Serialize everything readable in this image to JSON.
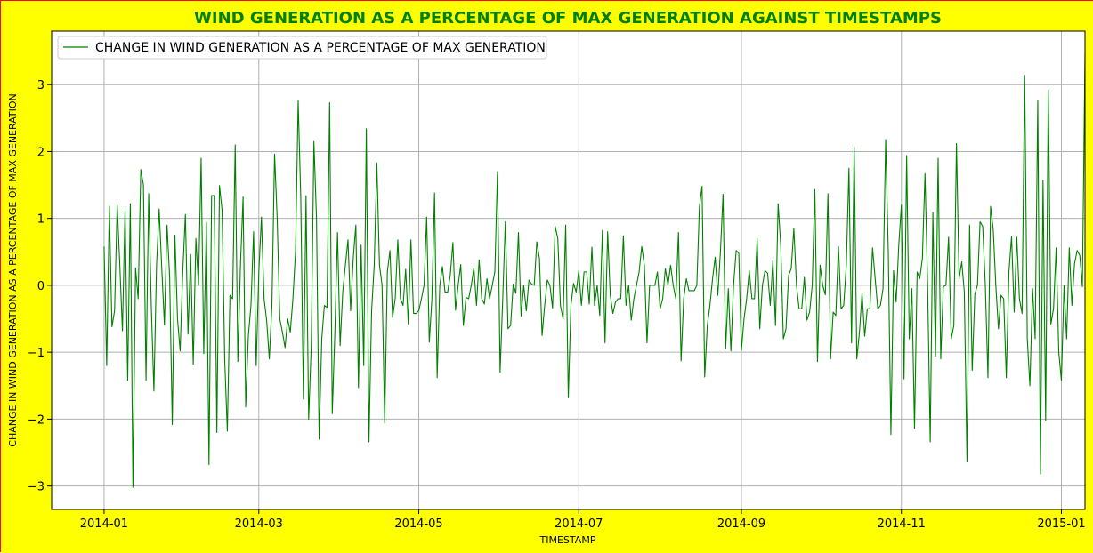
{
  "colors": {
    "background": "#ffff00",
    "border": "#ff0000",
    "title": "#008000",
    "line": "#008000",
    "grid": "#b0b0b0"
  },
  "chart_data": {
    "type": "line",
    "title": "WIND GENERATION AS A PERCENTAGE OF MAX GENERATION AGAINST TIMESTAMPS",
    "xlabel": "TIMESTAMP",
    "ylabel": "CHANGE IN WIND GENERATION AS A PERCENTAGE OF MAX GENERATION",
    "x_type": "date",
    "xlim": [
      "2013-12-12",
      "2015-01-10"
    ],
    "ylim": [
      -3.35,
      3.8
    ],
    "x_ticks": [
      "2014-01-01",
      "2014-03-01",
      "2014-05-01",
      "2014-07-01",
      "2014-09-01",
      "2014-11-01",
      "2015-01-01"
    ],
    "x_tick_labels": [
      "2014-01",
      "2014-03",
      "2014-05",
      "2014-07",
      "2014-09",
      "2014-11",
      "2015-01"
    ],
    "y_ticks": [
      -3,
      -2,
      -1,
      0,
      1,
      2,
      3
    ],
    "y_tick_labels": [
      "−3",
      "−2",
      "−1",
      "0",
      "1",
      "2",
      "3"
    ],
    "grid": true,
    "legend_position": "top-left",
    "series": [
      {
        "name": "CHANGE IN WIND GENERATION AS A PERCENTAGE OF MAX GENERATION",
        "color": "#008000",
        "x_start": "2014-01-01",
        "x_step_days": 1,
        "values": [
          0.58,
          -1.2,
          1.18,
          -0.62,
          -0.38,
          1.2,
          0.3,
          -0.68,
          1.14,
          -1.42,
          1.22,
          -3.02,
          0.26,
          -0.2,
          1.73,
          1.5,
          -1.42,
          1.37,
          -0.3,
          -1.58,
          0.3,
          1.14,
          0.25,
          -0.59,
          0.9,
          0.12,
          -2.08,
          0.75,
          -0.5,
          -0.98,
          0.2,
          1.06,
          -0.73,
          0.46,
          -1.18,
          0.7,
          0.0,
          1.9,
          -1.02,
          0.94,
          -2.68,
          1.34,
          1.34,
          -2.2,
          1.49,
          1.12,
          -1.12,
          -2.18,
          -0.15,
          -0.2,
          2.1,
          -1.14,
          0.3,
          1.32,
          -1.82,
          -0.76,
          -0.3,
          0.8,
          -1.2,
          0.2,
          1.02,
          -0.2,
          -0.53,
          -1.1,
          -0.3,
          1.96,
          1.0,
          -0.5,
          -0.7,
          -0.93,
          -0.5,
          -0.7,
          -0.2,
          0.5,
          2.76,
          1.3,
          -1.7,
          1.34,
          -2.0,
          -0.9,
          2.15,
          1.0,
          -2.3,
          -0.8,
          -0.3,
          -0.33,
          2.73,
          -1.92,
          -0.7,
          0.79,
          -0.9,
          -0.1,
          0.3,
          0.68,
          -0.38,
          0.4,
          0.9,
          -1.53,
          0.6,
          -1.2,
          2.34,
          -2.34,
          -0.38,
          0.3,
          1.83,
          0.3,
          0.0,
          -2.06,
          0.2,
          0.52,
          -0.48,
          -0.2,
          0.68,
          -0.2,
          -0.3,
          0.24,
          -0.58,
          0.68,
          -0.42,
          -0.42,
          -0.38,
          -0.2,
          0.0,
          1.02,
          -0.85,
          -0.2,
          1.38,
          -1.38,
          0.0,
          0.28,
          -0.1,
          -0.1,
          0.15,
          0.64,
          -0.37,
          0.0,
          0.31,
          -0.6,
          -0.18,
          -0.2,
          0.0,
          0.26,
          -0.3,
          0.38,
          -0.2,
          -0.28,
          0.1,
          -0.2,
          0.0,
          0.2,
          1.7,
          -1.3,
          -0.2,
          0.95,
          -0.65,
          -0.6,
          0.02,
          -0.12,
          0.79,
          -0.46,
          0.0,
          -0.38,
          0.08,
          0.02,
          0.0,
          0.65,
          0.4,
          -0.75,
          -0.3,
          0.08,
          0.0,
          -0.34,
          0.88,
          0.7,
          -0.3,
          -0.5,
          0.9,
          -1.68,
          -0.3,
          0.03,
          -0.1,
          0.22,
          -0.3,
          0.2,
          0.2,
          -0.28,
          0.57,
          -0.3,
          0.0,
          -0.45,
          0.82,
          -0.86,
          0.8,
          -0.15,
          -0.42,
          -0.25,
          -0.2,
          -0.2,
          0.74,
          -0.3,
          0.0,
          -0.52,
          -0.2,
          0.0,
          0.2,
          0.58,
          0.3,
          -0.86,
          0.0,
          0.0,
          0.0,
          0.2,
          -0.35,
          -0.2,
          0.25,
          0.0,
          0.3,
          0.0,
          -0.2,
          0.79,
          -1.13,
          -0.2,
          0.1,
          -0.08,
          -0.08,
          -0.08,
          0.0,
          1.18,
          1.48,
          -1.37,
          -0.6,
          -0.3,
          0.1,
          0.42,
          -0.15,
          0.5,
          1.36,
          -0.95,
          -0.05,
          -0.98,
          0.0,
          0.52,
          0.48,
          -0.97,
          -0.5,
          -0.2,
          0.22,
          -0.2,
          -0.2,
          0.7,
          -0.65,
          0.0,
          0.22,
          0.18,
          -0.3,
          0.37,
          -0.6,
          1.22,
          0.6,
          -0.8,
          -0.65,
          0.15,
          0.25,
          0.85,
          0.0,
          -0.35,
          -0.35,
          0.12,
          -0.52,
          -0.4,
          0.0,
          1.43,
          -1.14,
          0.3,
          0.0,
          -0.14,
          1.37,
          -1.1,
          -0.4,
          -0.45,
          0.58,
          -0.35,
          -0.3,
          0.3,
          1.75,
          -0.86,
          2.07,
          -1.1,
          -0.7,
          -0.12,
          -0.76,
          -0.35,
          -0.35,
          0.56,
          0.1,
          -0.35,
          -0.3,
          -0.05,
          2.18,
          0.5,
          -2.23,
          0.22,
          -0.25,
          0.6,
          1.2,
          -1.4,
          1.94,
          -0.8,
          -0.05,
          -2.14,
          0.2,
          0.1,
          0.4,
          1.67,
          0.0,
          -2.34,
          1.09,
          -1.06,
          1.9,
          -1.1,
          -0.02,
          0.0,
          0.72,
          -0.8,
          -0.6,
          2.12,
          0.1,
          0.35,
          -0.1,
          -2.64,
          0.9,
          -1.27,
          -0.13,
          0.0,
          0.95,
          0.88,
          0.0,
          -1.38,
          1.18,
          0.84,
          0.0,
          -0.65,
          -0.15,
          -0.2,
          -1.38,
          0.2,
          0.73,
          -0.4,
          0.72,
          -0.2,
          -0.42,
          3.14,
          -0.8,
          -1.5,
          -0.05,
          -0.8,
          2.77,
          -2.82,
          1.57,
          -2.02,
          2.92,
          -0.58,
          -0.35,
          0.56,
          -1.0,
          -1.42,
          0.0,
          -0.8,
          0.56,
          -0.3,
          0.32,
          0.52,
          0.45,
          -0.02,
          3.48
        ]
      }
    ]
  }
}
